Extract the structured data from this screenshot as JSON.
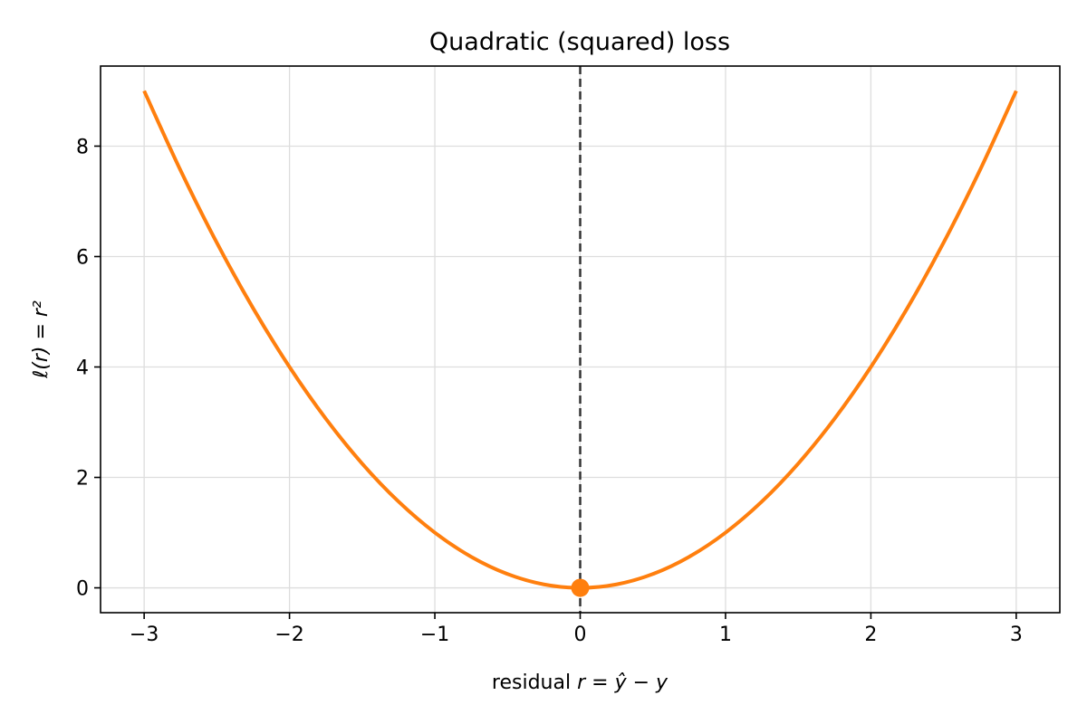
{
  "chart_data": {
    "type": "line",
    "title": "Quadratic (squared) loss",
    "xlabel": "residual r = ŷ − y",
    "xlabel_parts": {
      "prefix": "residual ",
      "r": "r",
      "eq": " = ",
      "yhat": "y",
      "minus": " − ",
      "y": "y"
    },
    "ylabel": "ℓ(r) = r²",
    "xlim": [
      -3.3,
      3.3
    ],
    "ylim": [
      -0.45,
      9.45
    ],
    "grid": true,
    "xticks": [
      -3,
      -2,
      -1,
      0,
      1,
      2,
      3
    ],
    "xtick_labels": [
      "−3",
      "−2",
      "−1",
      "0",
      "1",
      "2",
      "3"
    ],
    "yticks": [
      0,
      2,
      4,
      6,
      8
    ],
    "ytick_labels": [
      "0",
      "2",
      "4",
      "6",
      "8"
    ],
    "series": [
      {
        "color": "#ff7f0e",
        "x": [
          -3,
          -2.75,
          -2.5,
          -2.25,
          -2,
          -1.75,
          -1.5,
          -1.25,
          -1,
          -0.75,
          -0.5,
          -0.25,
          0,
          0.25,
          0.5,
          0.75,
          1,
          1.25,
          1.5,
          1.75,
          2,
          2.25,
          2.5,
          2.75,
          3
        ],
        "y": [
          9,
          7.5625,
          6.25,
          5.0625,
          4,
          3.0625,
          2.25,
          1.5625,
          1,
          0.5625,
          0.25,
          0.0625,
          0,
          0.0625,
          0.25,
          0.5625,
          1,
          1.5625,
          2.25,
          3.0625,
          4,
          5.0625,
          6.25,
          7.5625,
          9
        ]
      }
    ],
    "minimum_marker": {
      "x": 0,
      "y": 0,
      "color": "#ff7f0e"
    },
    "vline": {
      "x": 0,
      "style": "dashed",
      "color": "#333333"
    }
  }
}
